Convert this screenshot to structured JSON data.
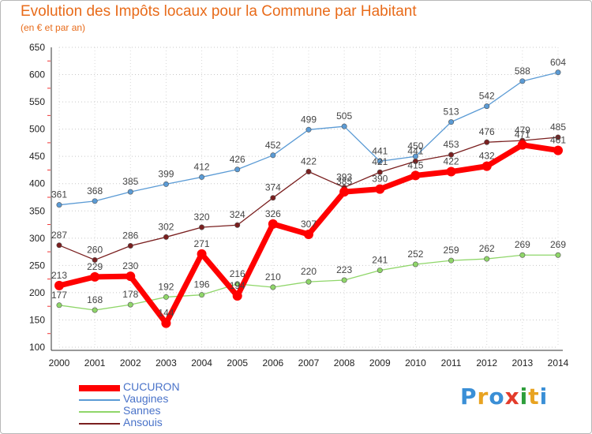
{
  "title": "Evolution des Impôts locaux pour la Commune par Habitant",
  "subtitle": "(en € et par an)",
  "logo": {
    "text": "Proxiti",
    "colors": [
      "#3a8fd6",
      "#e8a321",
      "#3a8fd6",
      "#e33b2b",
      "#2e9e3b",
      "#e8a321",
      "#3a8fd6"
    ]
  },
  "chart_data": {
    "type": "line",
    "x": [
      2000,
      2001,
      2002,
      2003,
      2004,
      2005,
      2006,
      2007,
      2008,
      2009,
      2010,
      2011,
      2012,
      2013,
      2014
    ],
    "ylim": [
      100,
      650
    ],
    "yticks": [
      100,
      150,
      200,
      250,
      300,
      350,
      400,
      450,
      500,
      550,
      600,
      650
    ],
    "grid": "horizontal-dotted",
    "legend_position": "bottom-left",
    "series": [
      {
        "name": "CUCURON",
        "color": "#ff0000",
        "values": [
          213,
          229,
          230,
          144,
          271,
          194,
          326,
          307,
          385,
          390,
          415,
          422,
          432,
          471,
          461
        ]
      },
      {
        "name": "Vaugines",
        "color": "#5b9bd5",
        "values": [
          361,
          368,
          385,
          399,
          412,
          426,
          452,
          499,
          505,
          441,
          450,
          513,
          542,
          588,
          604
        ]
      },
      {
        "name": "Sannes",
        "color": "#8fd669",
        "values": [
          177,
          168,
          178,
          192,
          196,
          216,
          210,
          220,
          223,
          241,
          252,
          259,
          262,
          269,
          269
        ]
      },
      {
        "name": "Ansouis",
        "color": "#7a1f1f",
        "values": [
          287,
          260,
          286,
          302,
          320,
          324,
          374,
          422,
          393,
          421,
          441,
          453,
          476,
          479,
          485
        ]
      }
    ]
  }
}
